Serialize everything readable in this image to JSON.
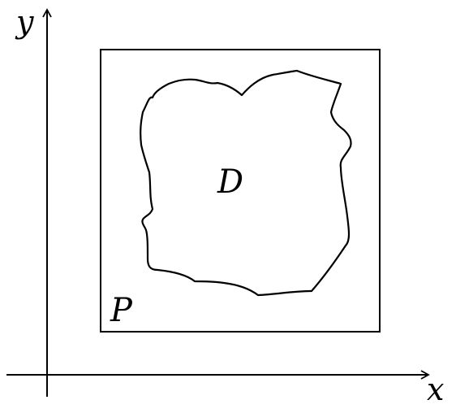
{
  "diagram": {
    "labels": {
      "y_axis": "y",
      "x_axis": "x",
      "region": "D",
      "rectangle": "P"
    },
    "colors": {
      "stroke": "#000000",
      "background": "#ffffff"
    }
  }
}
